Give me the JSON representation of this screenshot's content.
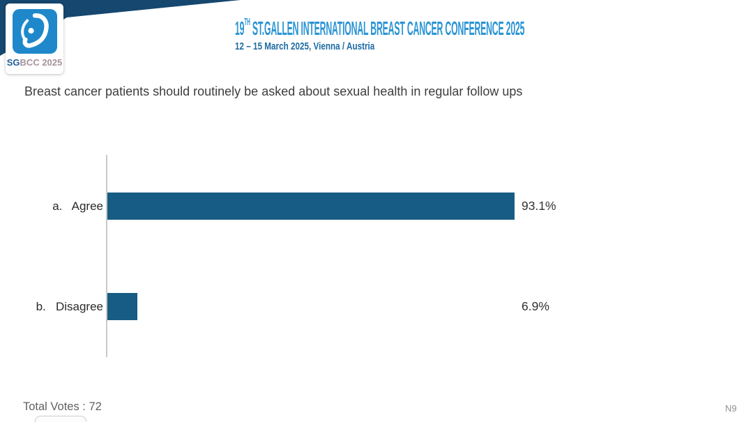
{
  "header": {
    "title_number": "19",
    "title_ordinal": "TH",
    "title_rest": " ST.GALLEN INTERNATIONAL BREAST CANCER CONFERENCE 2025",
    "subtitle": "12 – 15 March 2025, Vienna / Austria"
  },
  "logo": {
    "text_sg": "SG",
    "text_rest": "BCC 2025"
  },
  "question": "Breast cancer patients should routinely be asked about sexual health in regular follow ups",
  "chart_data": {
    "type": "bar",
    "orientation": "horizontal",
    "title": "Breast cancer patients should routinely be asked about sexual health in regular follow ups",
    "categories": [
      "a.   Agree",
      "b.   Disagree"
    ],
    "values": [
      93.1,
      6.9
    ],
    "value_labels": [
      "93.1%",
      "6.9%"
    ],
    "total_votes": 72,
    "xlim": [
      0,
      100
    ],
    "grid": false,
    "legend": false,
    "bar_color": "#175c84",
    "axis_color": "#c9c9c9"
  },
  "footer": {
    "total_votes_label": "Total Votes : 72",
    "slide_code": "N9"
  },
  "colors": {
    "ribbon_navy": "#15476f",
    "title_blue": "#2b94d4",
    "subtitle_blue": "#1d6ba3",
    "logo_square_blue": "#1e88cb"
  }
}
